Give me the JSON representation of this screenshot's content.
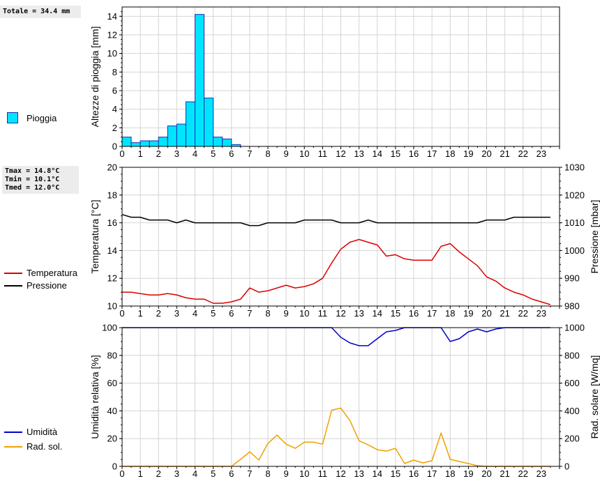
{
  "rain_total": "Totale = 34.4 mm",
  "temp_stats": [
    "Tmax = 14.8°C",
    "Tmin = 10.1°C",
    "Tmed = 12.0°C"
  ],
  "legend": {
    "rain": "Pioggia",
    "temperature": "Temperatura",
    "pressure": "Pressione",
    "humidity": "Umidità",
    "radiation": "Rad. sol."
  },
  "colors": {
    "rain_fill": "#00e5ff",
    "rain_edge": "#1a2bb0",
    "temperature": "#dd0000",
    "pressure": "#000000",
    "humidity": "#0000cc",
    "radiation": "#f0a000",
    "grid": "#d4d4d4"
  },
  "chart_data": [
    {
      "type": "bar",
      "ylabel": "Altezze di pioggia [mm]",
      "ylim": [
        0,
        15
      ],
      "yticks": [
        0,
        2,
        4,
        6,
        8,
        10,
        12,
        14
      ],
      "xlim": [
        0,
        24
      ],
      "xticks": [
        "0",
        "1",
        "2",
        "3",
        "4",
        "5",
        "6",
        "7",
        "8",
        "9",
        "10",
        "11",
        "12",
        "13",
        "14",
        "15",
        "16",
        "17",
        "18",
        "19",
        "20",
        "21",
        "22",
        "23"
      ],
      "bar_width_hours": 0.5,
      "series": [
        {
          "name": "Pioggia",
          "x": [
            0,
            0.5,
            1,
            1.5,
            2,
            2.5,
            3,
            3.5,
            4,
            4.5,
            5,
            5.5,
            6
          ],
          "values": [
            1.0,
            0.4,
            0.6,
            0.6,
            1.0,
            2.2,
            2.4,
            4.8,
            14.2,
            5.2,
            1.0,
            0.8,
            0.2
          ]
        }
      ]
    },
    {
      "type": "line",
      "ylabel": "Temperatura [°C]",
      "ylim": [
        10,
        20
      ],
      "yticks": [
        10,
        12,
        14,
        16,
        18,
        20
      ],
      "y2label": "Pressione [mbar]",
      "y2lim": [
        980,
        1030
      ],
      "y2ticks": [
        980,
        990,
        1000,
        1010,
        1020,
        1030
      ],
      "xlim": [
        0,
        24
      ],
      "xticks": [
        "0",
        "1",
        "2",
        "3",
        "4",
        "5",
        "6",
        "7",
        "8",
        "9",
        "10",
        "11",
        "12",
        "13",
        "14",
        "15",
        "16",
        "17",
        "18",
        "19",
        "20",
        "21",
        "22",
        "23"
      ],
      "series": [
        {
          "name": "Temperatura",
          "axis": "left",
          "x": [
            0,
            0.5,
            1,
            1.5,
            2,
            2.5,
            3,
            3.5,
            4,
            4.5,
            5,
            5.5,
            6,
            6.5,
            7,
            7.5,
            8,
            8.5,
            9,
            9.5,
            10,
            10.5,
            11,
            11.5,
            12,
            12.5,
            13,
            13.5,
            14,
            14.5,
            15,
            15.5,
            16,
            16.5,
            17,
            17.5,
            18,
            18.5,
            19,
            19.5,
            20,
            20.5,
            21,
            21.5,
            22,
            22.5,
            23,
            23.5
          ],
          "values": [
            11.0,
            11.0,
            10.9,
            10.8,
            10.8,
            10.9,
            10.8,
            10.6,
            10.5,
            10.5,
            10.2,
            10.2,
            10.3,
            10.5,
            11.3,
            11.0,
            11.1,
            11.3,
            11.5,
            11.3,
            11.4,
            11.6,
            12.0,
            13.1,
            14.1,
            14.6,
            14.8,
            14.6,
            14.4,
            13.6,
            13.7,
            13.4,
            13.3,
            13.3,
            13.3,
            14.3,
            14.5,
            13.9,
            13.4,
            12.9,
            12.1,
            11.8,
            11.3,
            11.0,
            10.8,
            10.5,
            10.3,
            10.1
          ]
        },
        {
          "name": "Pressione",
          "axis": "right",
          "x": [
            0,
            0.5,
            1,
            1.5,
            2,
            2.5,
            3,
            3.5,
            4,
            4.5,
            5,
            5.5,
            6,
            6.5,
            7,
            7.5,
            8,
            8.5,
            9,
            9.5,
            10,
            10.5,
            11,
            11.5,
            12,
            12.5,
            13,
            13.5,
            14,
            14.5,
            15,
            15.5,
            16,
            16.5,
            17,
            17.5,
            18,
            18.5,
            19,
            19.5,
            20,
            20.5,
            21,
            21.5,
            22,
            22.5,
            23,
            23.5
          ],
          "values": [
            1013,
            1012,
            1012,
            1011,
            1011,
            1011,
            1010,
            1011,
            1010,
            1010,
            1010,
            1010,
            1010,
            1010,
            1009,
            1009,
            1010,
            1010,
            1010,
            1010,
            1011,
            1011,
            1011,
            1011,
            1010,
            1010,
            1010,
            1011,
            1010,
            1010,
            1010,
            1010,
            1010,
            1010,
            1010,
            1010,
            1010,
            1010,
            1010,
            1010,
            1011,
            1011,
            1011,
            1012,
            1012,
            1012,
            1012,
            1012
          ]
        }
      ]
    },
    {
      "type": "line",
      "ylabel": "Umidità relativa [%]",
      "ylim": [
        0,
        100
      ],
      "yticks": [
        0,
        20,
        40,
        60,
        80,
        100
      ],
      "y2label": "Rad. solare [W/mq]",
      "y2lim": [
        0,
        1000
      ],
      "y2ticks": [
        0,
        200,
        400,
        600,
        800,
        1000
      ],
      "xlim": [
        0,
        24
      ],
      "xticks": [
        "0",
        "1",
        "2",
        "3",
        "4",
        "5",
        "6",
        "7",
        "8",
        "9",
        "10",
        "11",
        "12",
        "13",
        "14",
        "15",
        "16",
        "17",
        "18",
        "19",
        "20",
        "21",
        "22",
        "23"
      ],
      "series": [
        {
          "name": "Umidità",
          "axis": "left",
          "x": [
            0,
            0.5,
            1,
            1.5,
            2,
            2.5,
            3,
            3.5,
            4,
            4.5,
            5,
            5.5,
            6,
            6.5,
            7,
            7.5,
            8,
            8.5,
            9,
            9.5,
            10,
            10.5,
            11,
            11.5,
            12,
            12.5,
            13,
            13.5,
            14,
            14.5,
            15,
            15.5,
            16,
            16.5,
            17,
            17.5,
            18,
            18.5,
            19,
            19.5,
            20,
            20.5,
            21,
            21.5,
            22,
            22.5,
            23,
            23.5
          ],
          "values": [
            100,
            100,
            100,
            100,
            100,
            100,
            100,
            100,
            100,
            100,
            100,
            100,
            100,
            100,
            100,
            100,
            100,
            100,
            100,
            100,
            100,
            100,
            100,
            100,
            93,
            89,
            87,
            87,
            92,
            97,
            98,
            100,
            100,
            100,
            100,
            100,
            90,
            92,
            97,
            99,
            97,
            99,
            100,
            100,
            100,
            100,
            100,
            100
          ]
        },
        {
          "name": "Rad. sol.",
          "axis": "right",
          "x": [
            0,
            0.5,
            1,
            1.5,
            2,
            2.5,
            3,
            3.5,
            4,
            4.5,
            5,
            5.5,
            6,
            6.5,
            7,
            7.5,
            8,
            8.5,
            9,
            9.5,
            10,
            10.5,
            11,
            11.5,
            12,
            12.5,
            13,
            13.5,
            14,
            14.5,
            15,
            15.5,
            16,
            16.5,
            17,
            17.5,
            18,
            18.5,
            19,
            19.5,
            20,
            20.5,
            21,
            21.5,
            22,
            22.5,
            23,
            23.5
          ],
          "values": [
            0,
            0,
            0,
            0,
            0,
            0,
            0,
            0,
            0,
            0,
            0,
            0,
            0,
            50,
            105,
            45,
            165,
            225,
            160,
            130,
            175,
            175,
            160,
            405,
            420,
            330,
            185,
            155,
            120,
            110,
            130,
            20,
            45,
            25,
            40,
            240,
            50,
            35,
            20,
            5,
            0,
            0,
            0,
            0,
            0,
            0,
            0,
            0
          ]
        }
      ]
    }
  ]
}
